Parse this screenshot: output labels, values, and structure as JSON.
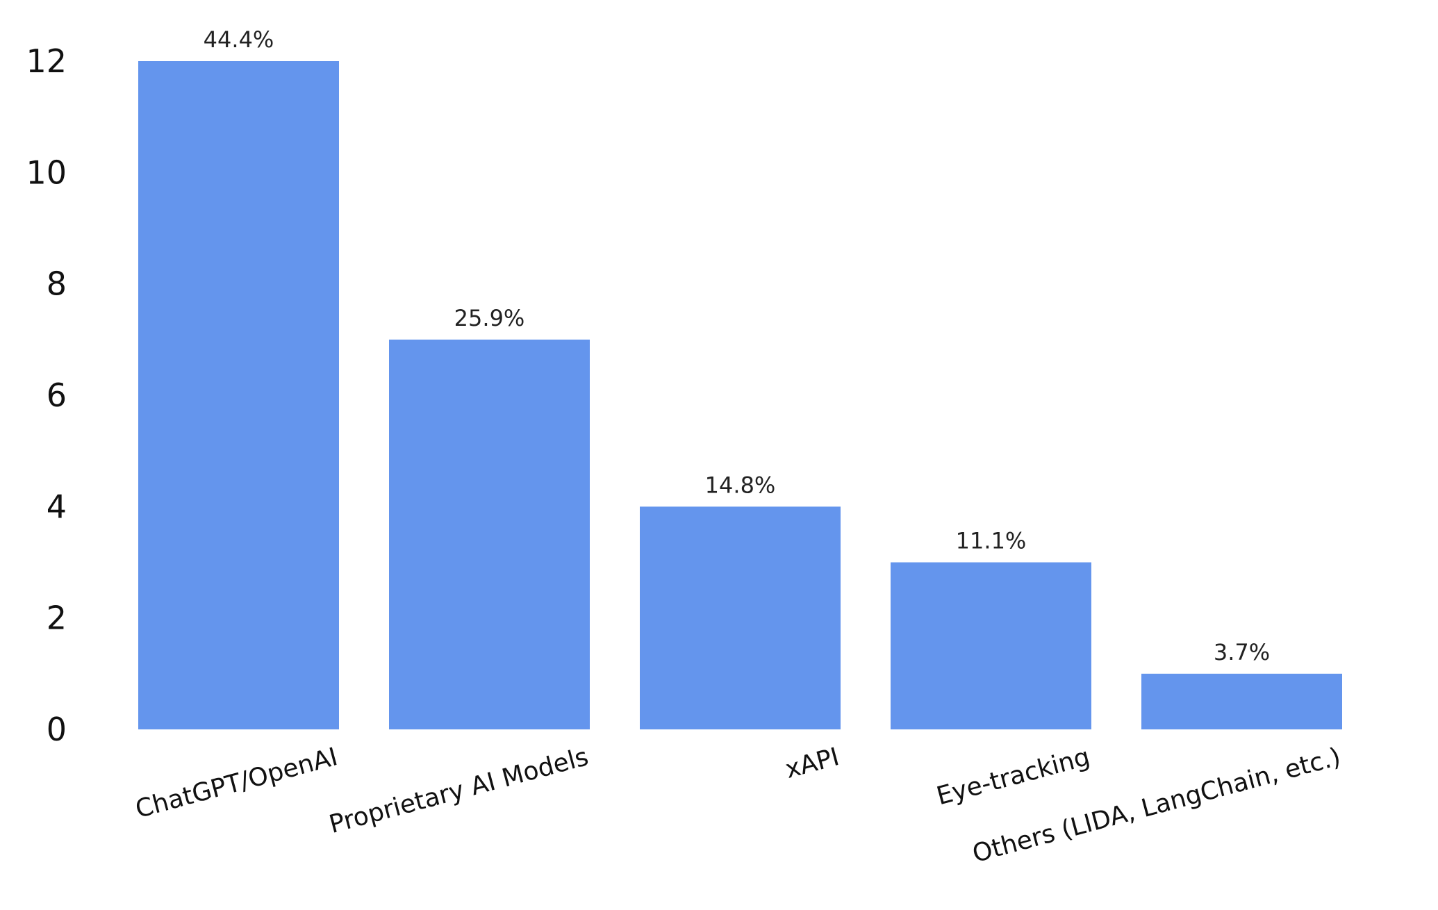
{
  "chart_data": {
    "type": "bar",
    "categories": [
      "ChatGPT/OpenAI",
      "Proprietary AI Models",
      "xAPI",
      "Eye-tracking",
      "Others (LIDA, LangChain, etc.)"
    ],
    "values": [
      12,
      7,
      4,
      3,
      1
    ],
    "data_labels": [
      "44.4%",
      "25.9%",
      "14.8%",
      "11.1%",
      "3.7%"
    ],
    "yticks": [
      "0",
      "2",
      "4",
      "6",
      "8",
      "10",
      "12"
    ],
    "ylim": [
      0,
      12
    ],
    "bar_color": "#6495ED",
    "grid": false,
    "legend": "none"
  }
}
